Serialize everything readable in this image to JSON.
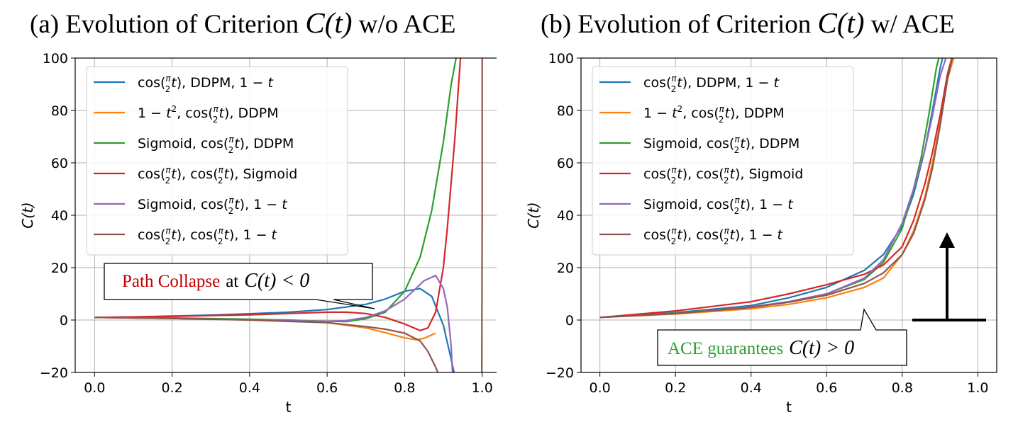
{
  "panels": [
    {
      "title_prefix": "(a) Evolution of Criterion",
      "title_math": "C(t)",
      "title_suffix": "w/o ACE",
      "callout": {
        "colored": "Path Collapse",
        "color": "#c00000",
        "plain": "at",
        "math": "C(t) < 0"
      }
    },
    {
      "title_prefix": "(b) Evolution of Criterion",
      "title_math": "C(t)",
      "title_suffix": "w/ ACE",
      "callout": {
        "colored": "ACE guarantees",
        "color": "#2ca02c",
        "plain": "",
        "math": "C(t) > 0"
      }
    }
  ],
  "chart_data": [
    {
      "type": "line",
      "title": "",
      "xlabel": "t",
      "ylabel": "C(t)",
      "xlim": [
        -0.05,
        1.05
      ],
      "ylim": [
        -20,
        100
      ],
      "xticks": [
        "0.0",
        "0.2",
        "0.4",
        "0.6",
        "0.8",
        "1.0"
      ],
      "yticks": [
        "−20",
        "0",
        "20",
        "40",
        "60",
        "80",
        "100"
      ],
      "grid": true,
      "legend_position": "upper-left",
      "series": [
        {
          "name": "cos(π/2 t), DDPM, 1 − t",
          "color": "#1f77b4",
          "x": [
            0,
            0.1,
            0.2,
            0.3,
            0.4,
            0.5,
            0.6,
            0.7,
            0.75,
            0.8,
            0.84,
            0.87,
            0.9,
            0.92,
            0.935
          ],
          "y": [
            1,
            1.2,
            1.5,
            1.9,
            2.4,
            3.0,
            4.0,
            6.0,
            8.0,
            11.0,
            12.0,
            9.0,
            -2.0,
            -15.0,
            -25.0
          ]
        },
        {
          "name": "1 − t², cos(π/2 t), DDPM",
          "color": "#ff7f0e",
          "x": [
            0,
            0.1,
            0.2,
            0.3,
            0.4,
            0.5,
            0.6,
            0.7,
            0.75,
            0.8,
            0.83,
            0.85,
            0.88
          ],
          "y": [
            1,
            0.8,
            0.6,
            0.4,
            0.1,
            -0.3,
            -1.0,
            -3.0,
            -4.8,
            -6.8,
            -7.5,
            -7.0,
            -5.0
          ]
        },
        {
          "name": "Sigmoid, cos(π/2 t), DDPM",
          "color": "#2ca02c",
          "x": [
            0,
            0.2,
            0.4,
            0.5,
            0.6,
            0.65,
            0.7,
            0.75,
            0.8,
            0.84,
            0.87,
            0.9,
            0.92,
            0.935
          ],
          "y": [
            1,
            0.8,
            0.3,
            0.0,
            -0.5,
            -0.6,
            0.5,
            3.0,
            11.0,
            24.0,
            42.0,
            68.0,
            90.0,
            102.0
          ]
        },
        {
          "name": "cos(π/2 t), cos(π/2 t), Sigmoid",
          "color": "#d62728",
          "x": [
            0,
            0.2,
            0.4,
            0.5,
            0.6,
            0.65,
            0.7,
            0.75,
            0.8,
            0.84,
            0.86,
            0.88,
            0.9,
            0.91,
            0.93,
            0.945
          ],
          "y": [
            1,
            1.4,
            2.0,
            2.5,
            3.0,
            3.0,
            2.5,
            1.0,
            -1.5,
            -4.0,
            -3.0,
            3.0,
            20.0,
            35.0,
            70.0,
            102.0
          ]
        },
        {
          "name": "Sigmoid, cos(π/2 t), 1 − t",
          "color": "#9467bd",
          "x": [
            0,
            0.2,
            0.4,
            0.5,
            0.6,
            0.65,
            0.7,
            0.75,
            0.8,
            0.85,
            0.88,
            0.9,
            0.91,
            0.92,
            0.925
          ],
          "y": [
            1,
            0.6,
            0.1,
            -0.3,
            -0.5,
            -0.2,
            1.0,
            3.5,
            8.0,
            15.0,
            17.0,
            12.0,
            5.0,
            -10.0,
            -25.0
          ]
        },
        {
          "name": "cos(π/2 t), cos(π/2 t), 1 − t",
          "color": "#8c564b",
          "x": [
            0,
            0.2,
            0.4,
            0.5,
            0.6,
            0.7,
            0.75,
            0.8,
            0.84,
            0.86,
            0.88,
            0.9
          ],
          "y": [
            1,
            0.6,
            0.0,
            -0.5,
            -1.0,
            -2.5,
            -3.5,
            -5.0,
            -8.0,
            -12.0,
            -18.0,
            -25.0
          ]
        },
        {
          "name": "",
          "color": "#8c564b",
          "x": [
            0.999,
            1.0,
            1.0
          ],
          "y": [
            -25.0,
            40.0,
            102.0
          ]
        }
      ]
    },
    {
      "type": "line",
      "title": "",
      "xlabel": "t",
      "ylabel": "C(t)",
      "xlim": [
        -0.05,
        1.05
      ],
      "ylim": [
        -20,
        100
      ],
      "xticks": [
        "0.0",
        "0.2",
        "0.4",
        "0.6",
        "0.8",
        "1.0"
      ],
      "yticks": [
        "−20",
        "0",
        "20",
        "40",
        "60",
        "80",
        "100"
      ],
      "grid": true,
      "legend_position": "upper-left",
      "series": [
        {
          "name": "cos(π/2 t), DDPM, 1 − t",
          "color": "#1f77b4",
          "x": [
            0,
            0.2,
            0.4,
            0.5,
            0.6,
            0.7,
            0.75,
            0.8,
            0.83,
            0.86,
            0.88,
            0.9,
            0.91
          ],
          "y": [
            1,
            2.8,
            5.5,
            8.5,
            12.5,
            19.0,
            25.0,
            36.0,
            48.0,
            65.0,
            80.0,
            96.0,
            102.0
          ]
        },
        {
          "name": "1 − t², cos(π/2 t), DDPM",
          "color": "#ff7f0e",
          "x": [
            0,
            0.2,
            0.4,
            0.5,
            0.6,
            0.7,
            0.75,
            0.8,
            0.83,
            0.86,
            0.88,
            0.9,
            0.92,
            0.94
          ],
          "y": [
            1,
            2.3,
            4.3,
            6.0,
            8.5,
            12.5,
            16.0,
            25.0,
            34.0,
            47.0,
            60.0,
            75.0,
            92.0,
            102.0
          ]
        },
        {
          "name": "Sigmoid, cos(π/2 t), DDPM",
          "color": "#2ca02c",
          "x": [
            0,
            0.2,
            0.4,
            0.5,
            0.6,
            0.7,
            0.75,
            0.8,
            0.83,
            0.85,
            0.87,
            0.89,
            0.9
          ],
          "y": [
            1,
            2.6,
            5.0,
            7.0,
            10.0,
            15.5,
            22.0,
            35.0,
            50.0,
            62.0,
            78.0,
            96.0,
            102.0
          ]
        },
        {
          "name": "cos(π/2 t), cos(π/2 t), Sigmoid",
          "color": "#d62728",
          "x": [
            0,
            0.2,
            0.4,
            0.5,
            0.6,
            0.7,
            0.75,
            0.8,
            0.83,
            0.86,
            0.88,
            0.9,
            0.92,
            0.935
          ],
          "y": [
            1,
            3.5,
            7.0,
            10.0,
            13.5,
            17.5,
            21.0,
            28.0,
            38.0,
            52.0,
            64.0,
            78.0,
            94.0,
            102.0
          ]
        },
        {
          "name": "Sigmoid, cos(π/2 t), 1 − t",
          "color": "#9467bd",
          "x": [
            0,
            0.2,
            0.4,
            0.5,
            0.6,
            0.7,
            0.75,
            0.8,
            0.83,
            0.86,
            0.88,
            0.9,
            0.92
          ],
          "y": [
            1,
            2.5,
            5.0,
            7.0,
            10.0,
            16.0,
            23.0,
            37.0,
            50.0,
            65.0,
            78.0,
            93.0,
            102.0
          ]
        },
        {
          "name": "cos(π/2 t), cos(π/2 t), 1 − t",
          "color": "#8c564b",
          "x": [
            0,
            0.2,
            0.4,
            0.5,
            0.6,
            0.7,
            0.75,
            0.8,
            0.83,
            0.86,
            0.88,
            0.9,
            0.92,
            0.935
          ],
          "y": [
            1,
            2.5,
            4.8,
            6.8,
            9.5,
            14.0,
            18.0,
            25.0,
            33.0,
            46.0,
            58.0,
            74.0,
            92.0,
            102.0
          ]
        }
      ]
    }
  ]
}
